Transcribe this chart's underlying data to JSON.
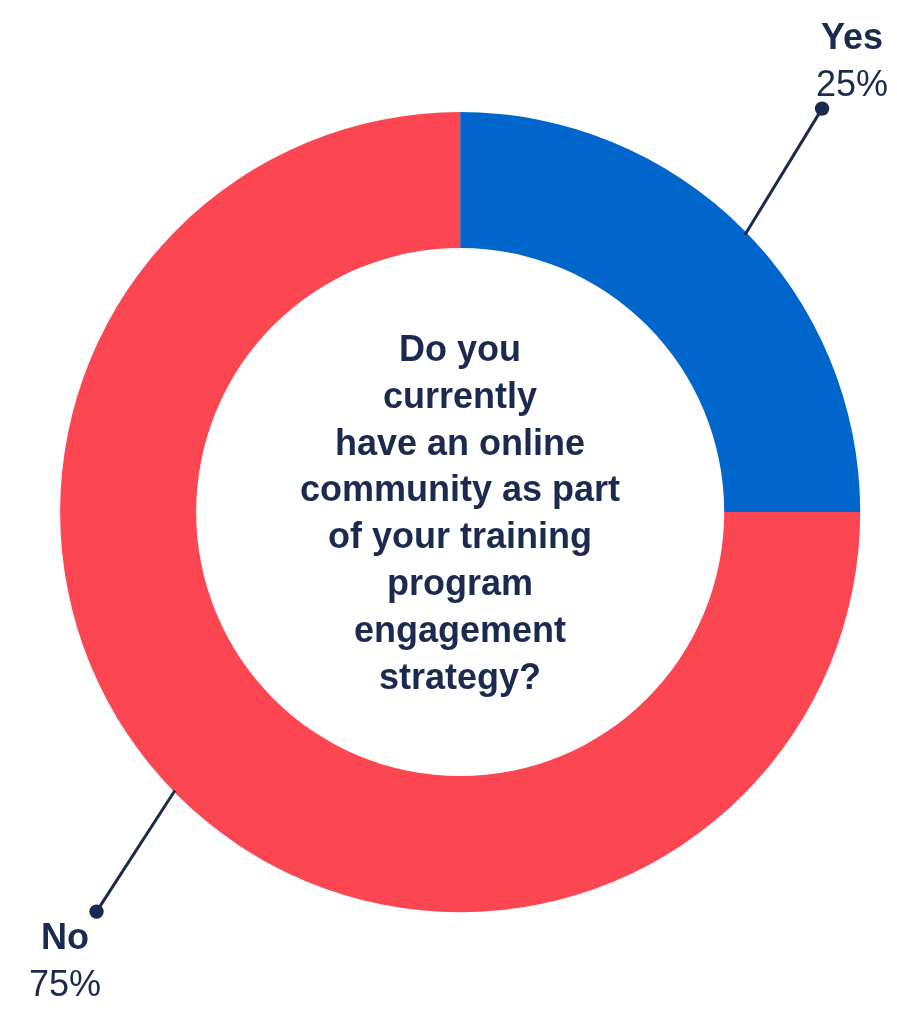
{
  "chart_data": {
    "type": "donut",
    "title": "Do you currently have an online community as part of your training program engagement strategy?",
    "categories": [
      "Yes",
      "No"
    ],
    "values": [
      25,
      75
    ],
    "colors": [
      "#0066cc",
      "#fc4652"
    ],
    "value_labels": [
      "25%",
      "75%"
    ]
  }
}
